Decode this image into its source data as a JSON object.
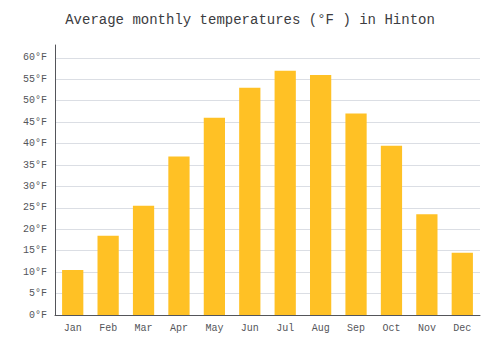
{
  "chart_data": {
    "type": "bar",
    "title": "Average monthly temperatures (°F ) in Hinton",
    "categories": [
      "Jan",
      "Feb",
      "Mar",
      "Apr",
      "May",
      "Jun",
      "Jul",
      "Aug",
      "Sep",
      "Oct",
      "Nov",
      "Dec"
    ],
    "values": [
      10.5,
      18.5,
      25.5,
      37.0,
      46.0,
      53.0,
      57.0,
      56.0,
      47.0,
      39.5,
      23.5,
      14.5
    ],
    "color": "#FFC125",
    "ylim": [
      0,
      63
    ],
    "yticks": [
      {
        "value": 0,
        "label": "0°F"
      },
      {
        "value": 5,
        "label": "5°F"
      },
      {
        "value": 10,
        "label": "10°F"
      },
      {
        "value": 15,
        "label": "15°F"
      },
      {
        "value": 20,
        "label": "20°F"
      },
      {
        "value": 25,
        "label": "25°F"
      },
      {
        "value": 30,
        "label": "30°F"
      },
      {
        "value": 35,
        "label": "35°F"
      },
      {
        "value": 40,
        "label": "40°F"
      },
      {
        "value": 45,
        "label": "45°F"
      },
      {
        "value": 50,
        "label": "50°F"
      },
      {
        "value": 55,
        "label": "55°F"
      },
      {
        "value": 60,
        "label": "60°F"
      }
    ],
    "grid": true
  }
}
